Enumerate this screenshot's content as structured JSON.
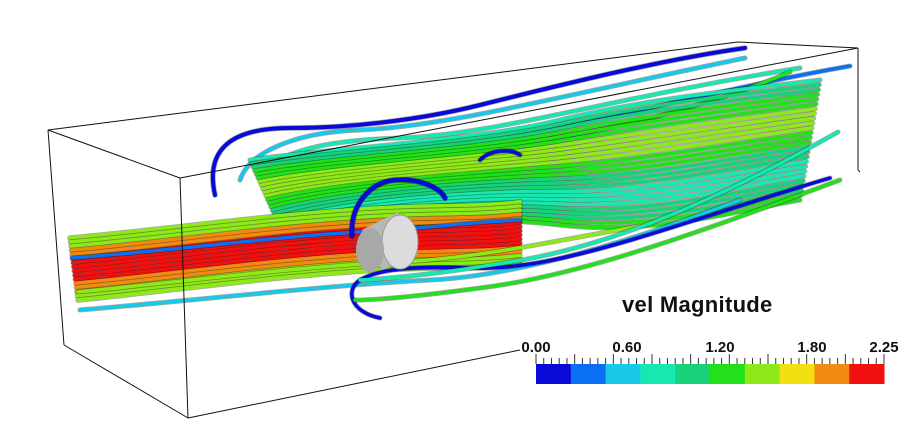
{
  "legend": {
    "title": "vel Magnitude",
    "range": [
      0.0,
      2.25
    ],
    "tick_labels": [
      {
        "text": "0.00",
        "value": 0.0
      },
      {
        "text": "0.60",
        "value": 0.6
      },
      {
        "text": "1.20",
        "value": 1.2
      },
      {
        "text": "1.80",
        "value": 1.8
      },
      {
        "text": "2.25",
        "value": 2.25
      }
    ],
    "colors": [
      "#0a0ad8",
      "#0a6ff0",
      "#18c8e8",
      "#18e8b0",
      "#18d27a",
      "#22e01a",
      "#8fe81a",
      "#f0e010",
      "#f08a10",
      "#f01010"
    ]
  },
  "scene": {
    "object": "cylinder-obstacle",
    "box_color": "#111111",
    "cylinder_color": "#c8c8c8"
  }
}
